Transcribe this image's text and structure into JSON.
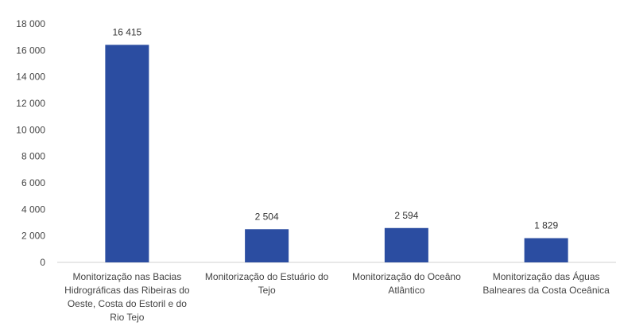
{
  "chart_data": {
    "type": "bar",
    "title": "",
    "xlabel": "",
    "ylabel": "",
    "ylim": [
      0,
      18000
    ],
    "yticks": [
      0,
      2000,
      4000,
      6000,
      8000,
      10000,
      12000,
      14000,
      16000,
      18000
    ],
    "ytick_labels": [
      "0",
      "2 000",
      "4 000",
      "6 000",
      "8 000",
      "10 000",
      "12 000",
      "14 000",
      "16 000",
      "18 000"
    ],
    "grid": false,
    "legend": "none",
    "bar_color": "#2b4da1",
    "categories": [
      "Monitorização nas Bacias Hidrográficas das Ribeiras do Oeste, Costa do Estoril e do Rio Tejo",
      "Monitorização do Estuário do Tejo",
      "Monitorização do Oceâno Atlântico",
      "Monitorização das Águas Balneares da Costa Oceânica"
    ],
    "category_lines": [
      [
        "Monitorização nas Bacias",
        "Hidrográficas das Ribeiras do",
        "Oeste, Costa do Estoril e do",
        "Rio Tejo"
      ],
      [
        "Monitorização do Estuário do",
        "Tejo"
      ],
      [
        "Monitorização do Oceâno",
        "Atlântico"
      ],
      [
        "Monitorização das Águas",
        "Balneares da Costa Oceânica"
      ]
    ],
    "values": [
      16415,
      2504,
      2594,
      1829
    ],
    "value_labels": [
      "16 415",
      "2 504",
      "2 594",
      "1 829"
    ]
  }
}
